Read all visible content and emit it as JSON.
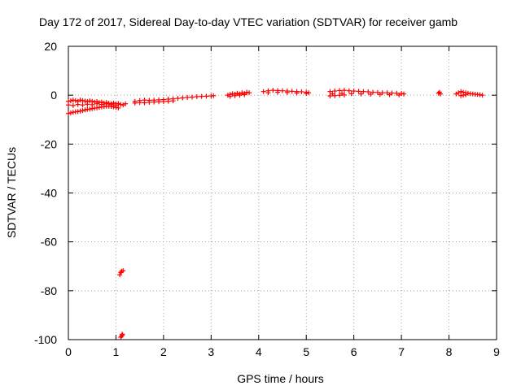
{
  "chart_data": {
    "type": "scatter",
    "title": "Day 172 of 2017, Sidereal Day-to-day VTEC variation (SDTVAR) for receiver gamb",
    "xlabel": "GPS time / hours",
    "ylabel": "SDTVAR / TECUs",
    "xlim": [
      0,
      9
    ],
    "ylim": [
      -100,
      20
    ],
    "xticks": [
      0,
      1,
      2,
      3,
      4,
      5,
      6,
      7,
      8,
      9
    ],
    "yticks": [
      -100,
      -80,
      -60,
      -40,
      -20,
      0,
      20
    ],
    "grid": true,
    "marker": "+",
    "series": [
      {
        "name": "SDTVAR",
        "color": "#ff0000",
        "x": [
          0.0,
          0.05,
          0.1,
          0.15,
          0.2,
          0.25,
          0.3,
          0.35,
          0.4,
          0.45,
          0.5,
          0.55,
          0.6,
          0.65,
          0.7,
          0.75,
          0.8,
          0.85,
          0.9,
          0.95,
          1.0,
          1.05,
          1.1,
          1.15,
          1.2,
          0.0,
          0.05,
          0.1,
          0.15,
          0.2,
          0.25,
          0.3,
          0.35,
          0.4,
          0.45,
          0.5,
          0.55,
          0.6,
          0.65,
          0.7,
          0.75,
          0.8,
          0.85,
          0.9,
          0.95,
          1.0,
          1.05,
          0.0,
          0.1,
          0.2,
          0.3,
          0.4,
          0.5,
          0.6,
          0.7,
          0.8,
          0.9,
          1.0,
          1.1,
          1.12,
          1.08,
          1.15,
          1.12,
          1.14,
          1.1,
          1.13,
          1.4,
          1.5,
          1.6,
          1.7,
          1.8,
          1.9,
          2.0,
          2.1,
          2.2,
          2.3,
          2.4,
          2.5,
          2.6,
          2.7,
          2.8,
          2.9,
          3.0,
          3.05,
          1.4,
          1.5,
          1.6,
          1.7,
          1.8,
          1.9,
          2.0,
          2.1,
          2.2,
          3.35,
          3.4,
          3.45,
          3.5,
          3.55,
          3.6,
          3.65,
          3.7,
          3.75,
          3.8,
          3.4,
          3.5,
          3.6,
          3.7,
          4.1,
          4.2,
          4.3,
          4.4,
          4.5,
          4.6,
          4.7,
          4.8,
          4.9,
          5.0,
          5.05,
          4.2,
          4.4,
          4.6,
          4.8,
          5.0,
          5.5,
          5.6,
          5.7,
          5.8,
          5.9,
          6.0,
          6.1,
          6.2,
          6.3,
          6.4,
          6.5,
          6.6,
          6.7,
          6.8,
          6.9,
          7.0,
          7.05,
          5.55,
          5.75,
          5.95,
          6.15,
          6.35,
          6.55,
          6.75,
          6.95,
          5.5,
          5.6,
          5.7,
          5.8,
          7.78,
          7.8,
          7.82,
          8.15,
          8.2,
          8.25,
          8.3,
          8.35,
          8.4,
          8.45,
          8.5,
          8.55,
          8.6,
          8.65,
          8.7,
          8.25,
          8.3,
          8.35
        ],
        "y": [
          -2.5,
          -2.3,
          -2.0,
          -2.2,
          -2.5,
          -2.0,
          -2.2,
          -2.4,
          -2.6,
          -2.3,
          -2.5,
          -2.8,
          -2.6,
          -3.0,
          -2.8,
          -3.2,
          -3.0,
          -3.3,
          -3.5,
          -3.2,
          -3.6,
          -3.4,
          -3.8,
          -4.0,
          -3.5,
          -7.5,
          -7.2,
          -7.0,
          -6.8,
          -6.7,
          -6.5,
          -6.3,
          -6.0,
          -5.8,
          -5.7,
          -5.5,
          -5.3,
          -5.2,
          -5.0,
          -4.8,
          -4.7,
          -4.5,
          -4.5,
          -4.6,
          -4.8,
          -5.0,
          -5.2,
          -4.0,
          -4.2,
          -3.8,
          -4.0,
          -3.7,
          -3.9,
          -3.5,
          -3.8,
          -3.6,
          -3.9,
          -4.2,
          -72.5,
          -72.0,
          -73.5,
          -71.8,
          -98.5,
          -98.0,
          -99.0,
          -97.8,
          -2.5,
          -2.2,
          -2.0,
          -2.1,
          -2.0,
          -1.9,
          -1.8,
          -1.6,
          -1.5,
          -1.3,
          -1.1,
          -0.9,
          -0.8,
          -0.6,
          -0.5,
          -0.4,
          -0.3,
          -0.2,
          -3.2,
          -3.0,
          -3.1,
          -2.9,
          -2.8,
          -2.7,
          -2.6,
          -2.5,
          -2.3,
          0.0,
          0.3,
          0.6,
          0.4,
          0.8,
          0.5,
          1.0,
          0.7,
          1.2,
          1.0,
          -0.5,
          -0.2,
          0.0,
          0.2,
          1.5,
          1.8,
          2.0,
          1.9,
          1.8,
          1.7,
          1.6,
          1.5,
          1.4,
          1.2,
          1.0,
          1.0,
          1.2,
          1.1,
          0.9,
          0.7,
          1.5,
          1.7,
          1.9,
          2.0,
          1.8,
          1.7,
          1.6,
          1.5,
          1.4,
          1.2,
          1.1,
          1.0,
          1.0,
          0.9,
          0.8,
          0.7,
          0.5,
          0.5,
          0.7,
          0.6,
          0.5,
          0.4,
          0.3,
          0.2,
          0.1,
          -0.3,
          -0.2,
          0.0,
          0.1,
          0.8,
          1.2,
          0.5,
          0.5,
          1.0,
          1.5,
          1.2,
          1.0,
          0.8,
          0.6,
          0.5,
          0.4,
          0.3,
          0.2,
          0.0,
          -0.2,
          0.0,
          0.2
        ]
      }
    ]
  },
  "colors": {
    "series": "#ff0000",
    "axis": "#000000",
    "grid": "#a0a0a0",
    "background": "#ffffff"
  }
}
